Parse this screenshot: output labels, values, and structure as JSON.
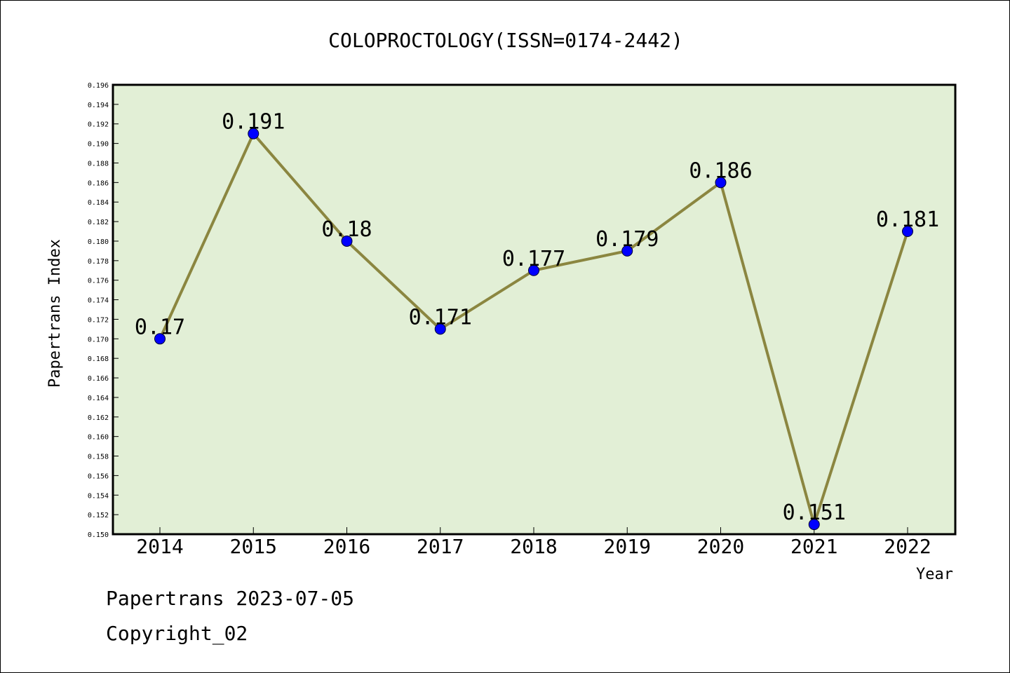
{
  "chart_data": {
    "type": "line",
    "title": "COLOPROCTOLOGY(ISSN=0174-2442)",
    "xlabel": "Year",
    "ylabel": "Papertrans Index",
    "categories": [
      "2014",
      "2015",
      "2016",
      "2017",
      "2018",
      "2019",
      "2020",
      "2021",
      "2022"
    ],
    "series": [
      {
        "values": [
          0.17,
          0.191,
          0.18,
          0.171,
          0.177,
          0.179,
          0.186,
          0.151,
          0.181
        ],
        "data_labels": [
          "0.17",
          "0.191",
          "0.18",
          "0.171",
          "0.177",
          "0.179",
          "0.186",
          "0.151",
          "0.181"
        ],
        "line_color": "#8b8640",
        "marker_color": "#0000ff"
      }
    ],
    "ylim": [
      0.15,
      0.196
    ],
    "ytick_step": 0.002,
    "ytick_decimals": 3,
    "grid": false,
    "plot_background": "#e2efd6"
  },
  "footer": {
    "stamp": "Papertrans 2023-07-05",
    "copyright": "Copyright_02"
  }
}
